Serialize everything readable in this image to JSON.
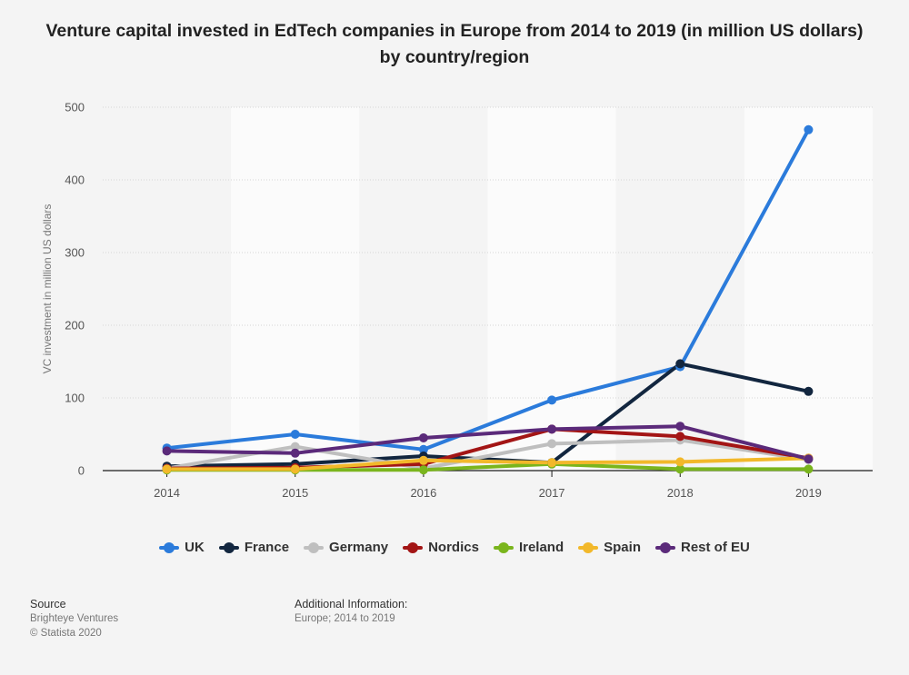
{
  "title": "Venture capital invested in EdTech companies in Europe from 2014 to 2019 (in million US dollars) by country/region",
  "footer": {
    "source_heading": "Source",
    "source_lines": [
      "Brighteye Ventures",
      "© Statista 2020"
    ],
    "info_heading": "Additional Information:",
    "info_text": "Europe; 2014 to 2019"
  },
  "chart_data": {
    "type": "line",
    "title": "Venture capital invested in EdTech companies in Europe from 2014 to 2019 (in million US dollars) by country/region",
    "xlabel": "",
    "ylabel": "VC investment in million US dollars",
    "x": [
      "2014",
      "2015",
      "2016",
      "2017",
      "2018",
      "2019"
    ],
    "ylim": [
      0,
      500
    ],
    "yticks": [
      0,
      100,
      200,
      300,
      400,
      500
    ],
    "grid": true,
    "legend_position": "bottom",
    "series": [
      {
        "name": "UK",
        "color": "#2b7bdb",
        "values": [
          31,
          50,
          29,
          97,
          143,
          469
        ]
      },
      {
        "name": "France",
        "color": "#12263f",
        "values": [
          6,
          9,
          20,
          11,
          147,
          109
        ]
      },
      {
        "name": "Germany",
        "color": "#bfbfbf",
        "values": [
          3,
          33,
          3,
          37,
          42,
          15
        ]
      },
      {
        "name": "Nordics",
        "color": "#a31515",
        "values": [
          3,
          4,
          9,
          57,
          47,
          17
        ]
      },
      {
        "name": "Ireland",
        "color": "#7ab51d",
        "values": [
          1,
          1,
          1,
          9,
          2,
          2
        ]
      },
      {
        "name": "Spain",
        "color": "#f2b82a",
        "values": [
          2,
          2,
          14,
          11,
          12,
          17
        ]
      },
      {
        "name": "Rest of EU",
        "color": "#5b2a7a",
        "values": [
          27,
          24,
          45,
          57,
          61,
          16
        ]
      }
    ]
  }
}
